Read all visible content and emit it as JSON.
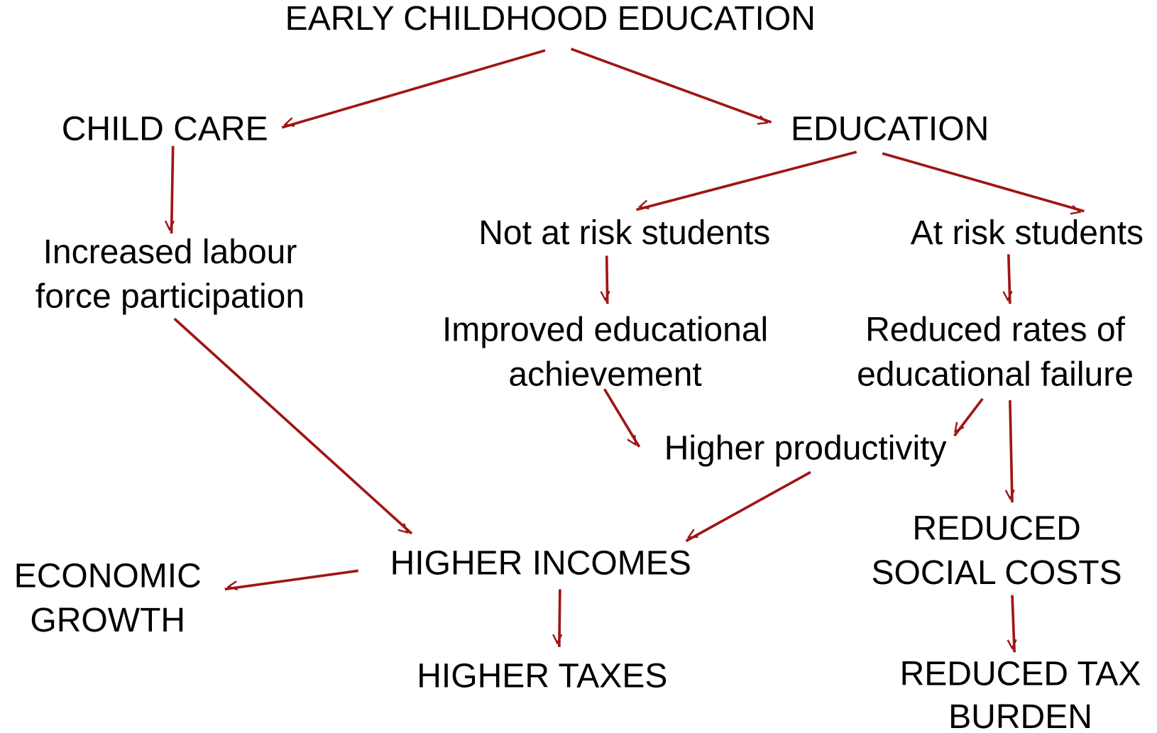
{
  "nodes": [
    {
      "lines": [
        "EARLY CHILDHOOD EDUCATION"
      ]
    },
    {
      "lines": [
        "CHILD CARE"
      ]
    },
    {
      "lines": [
        "EDUCATION"
      ]
    },
    {
      "lines": [
        "Increased labour",
        "force participation"
      ]
    },
    {
      "lines": [
        "Not at risk students"
      ]
    },
    {
      "lines": [
        "At risk students"
      ]
    },
    {
      "lines": [
        "Improved educational",
        "achievement"
      ]
    },
    {
      "lines": [
        "Reduced rates of",
        "educational failure"
      ]
    },
    {
      "lines": [
        "Higher productivity"
      ]
    },
    {
      "lines": [
        "HIGHER INCOMES"
      ]
    },
    {
      "lines": [
        "ECONOMIC",
        "GROWTH"
      ]
    },
    {
      "lines": [
        "HIGHER TAXES"
      ]
    },
    {
      "lines": [
        "REDUCED",
        "SOCIAL COSTS"
      ]
    },
    {
      "lines": [
        "REDUCED TAX",
        "BURDEN"
      ]
    }
  ]
}
